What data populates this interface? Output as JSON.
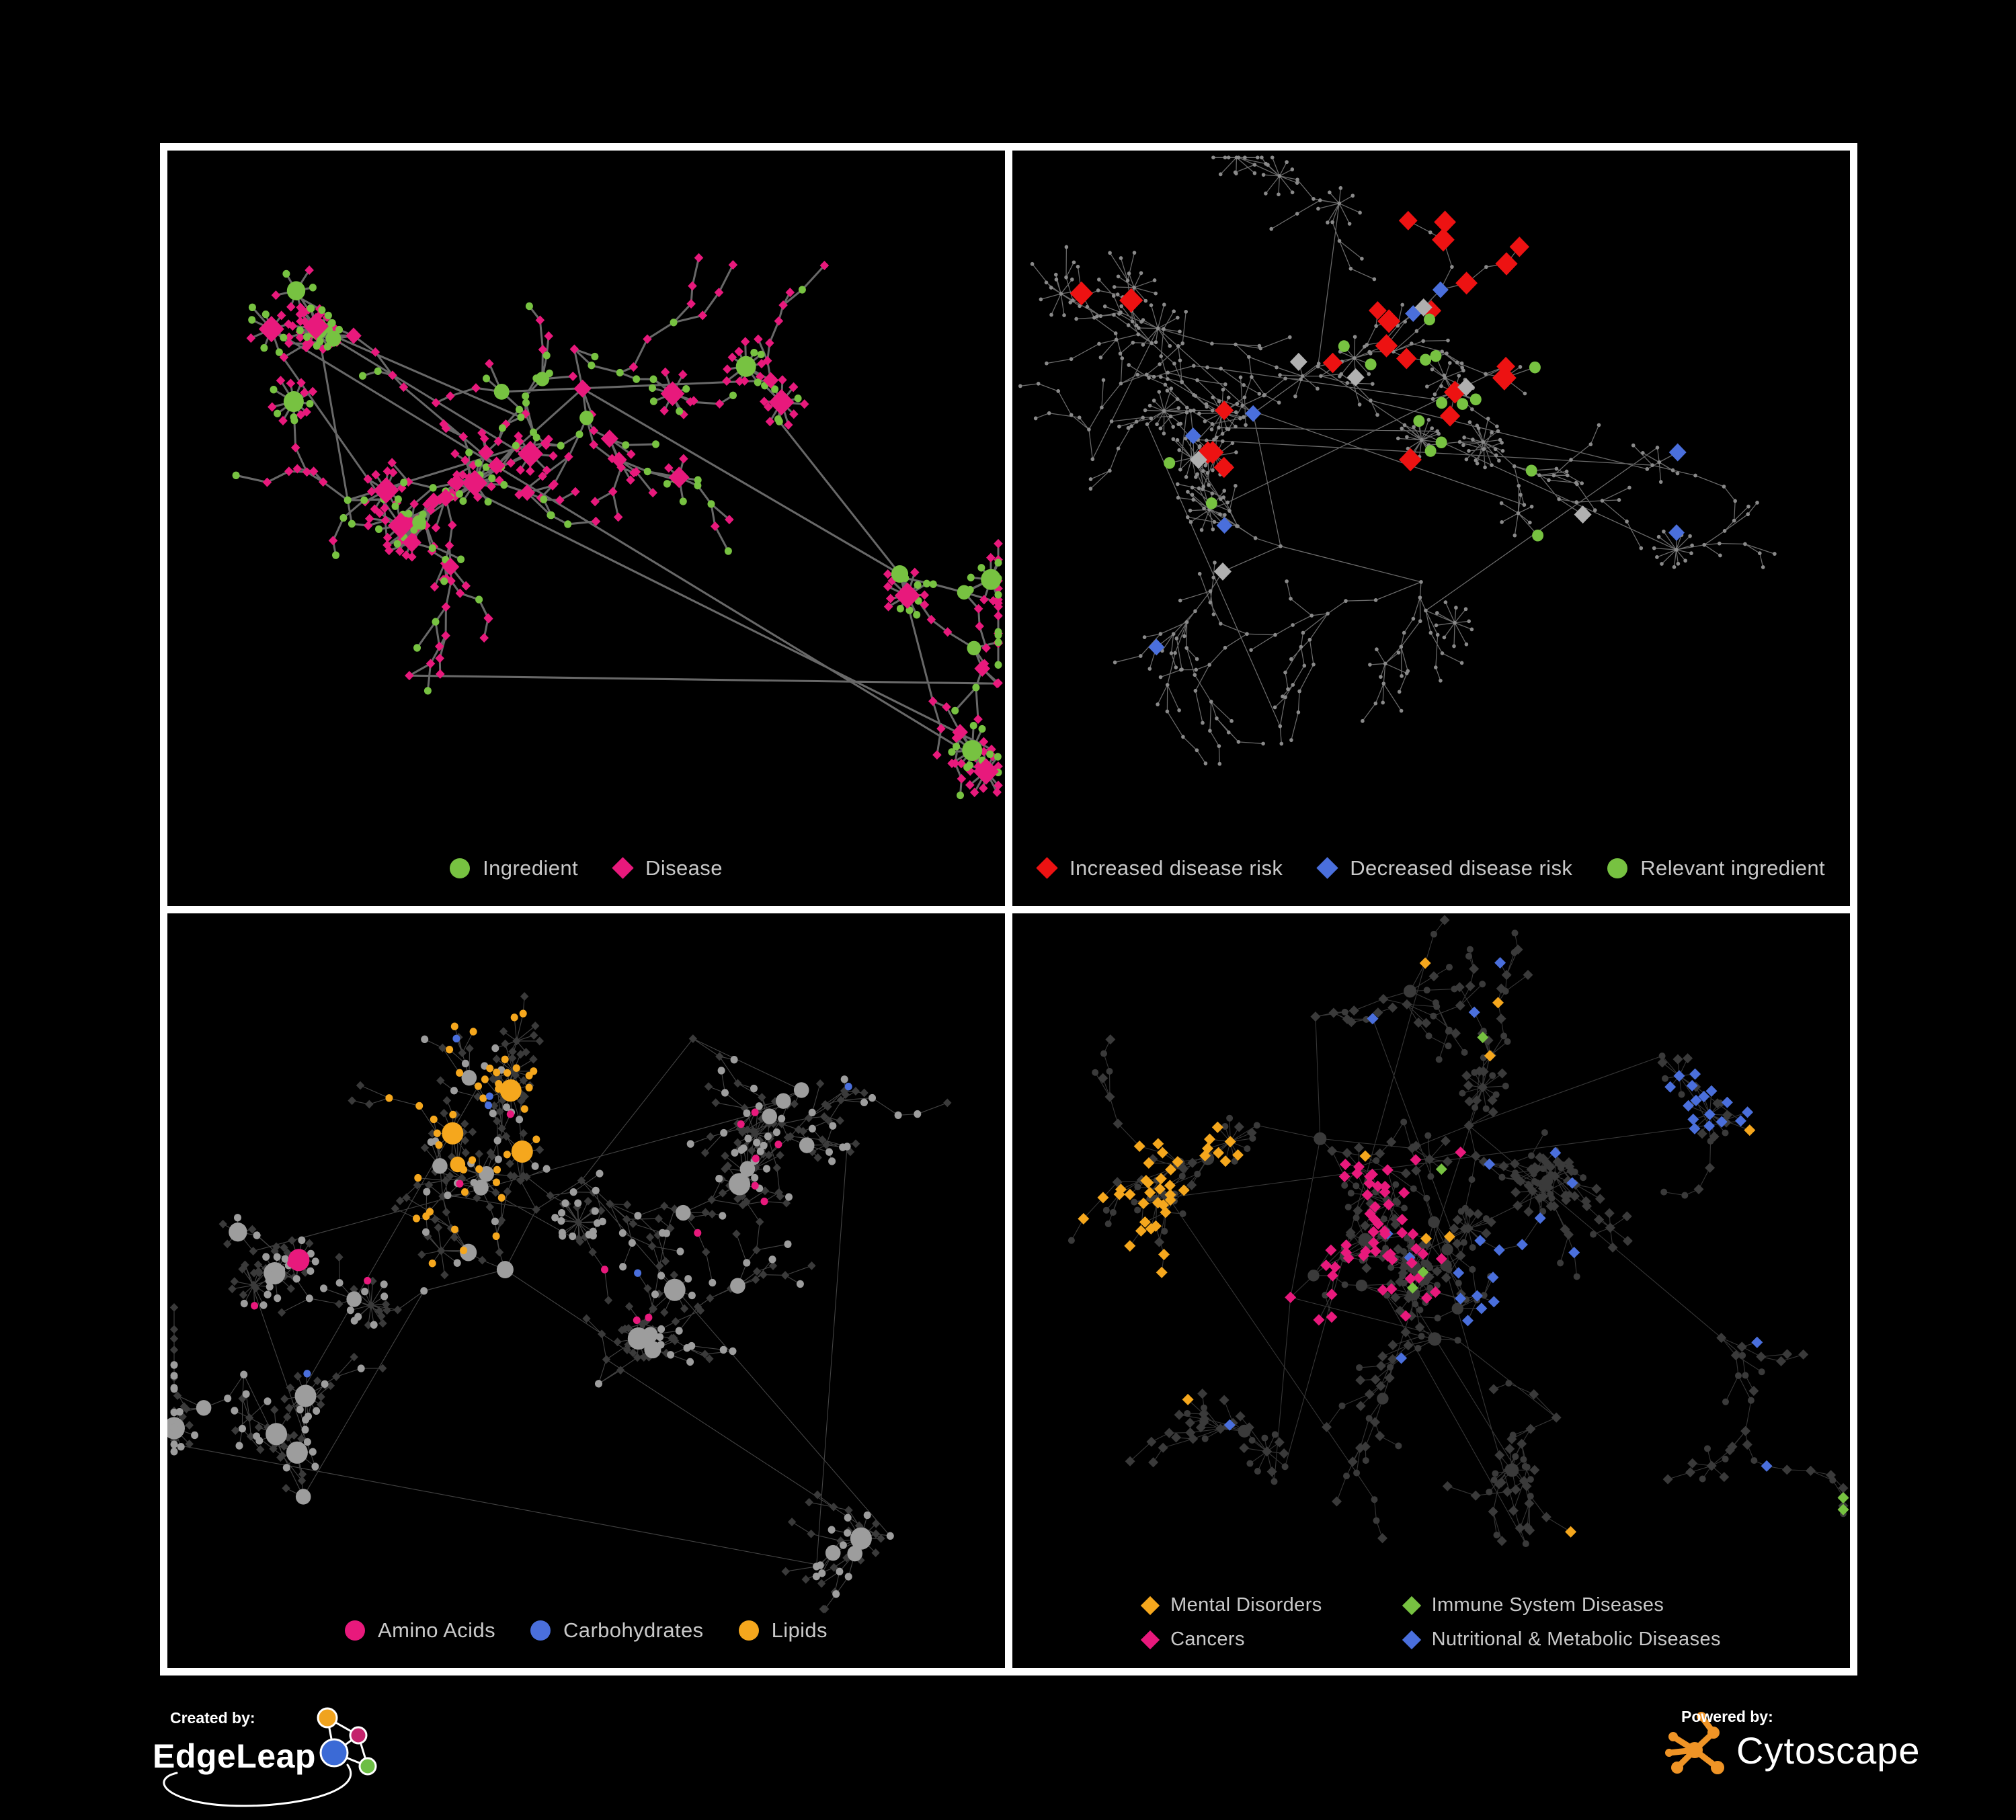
{
  "figure": {
    "background": "#000000",
    "panel_background": "#000000",
    "panel_border_color": "#ffffff",
    "legend_text_color": "#c9c9c9"
  },
  "palette": {
    "green": "#77c241",
    "magenta": "#e8197c",
    "red": "#ed1212",
    "blue": "#4a6fdc",
    "orange": "#f5a71d",
    "gray_highlight": "#b0b0b0",
    "gray_node": "#8a8a8a",
    "light_gray_node": "#9d9d9d",
    "dark_node": "#3a3a3a",
    "edge_dark_gray": "#6e6e6e",
    "edge_light_gray": "#9f9f9f"
  },
  "panels": [
    {
      "id": "ingredient-disease",
      "legend": [
        {
          "label": "Ingredient",
          "shape": "circle",
          "color": "#77c241"
        },
        {
          "label": "Disease",
          "shape": "diamond",
          "color": "#e8197c"
        }
      ]
    },
    {
      "id": "disease-risk",
      "legend": [
        {
          "label": "Increased disease risk",
          "shape": "diamond",
          "color": "#ed1212"
        },
        {
          "label": "Decreased disease risk",
          "shape": "diamond",
          "color": "#4a6fdc"
        },
        {
          "label": "Relevant ingredient",
          "shape": "circle",
          "color": "#77c241"
        }
      ]
    },
    {
      "id": "nutrient-classes",
      "legend": [
        {
          "label": "Amino Acids",
          "shape": "circle",
          "color": "#e8197c"
        },
        {
          "label": "Carbohydrates",
          "shape": "circle",
          "color": "#4a6fdc"
        },
        {
          "label": "Lipids",
          "shape": "circle",
          "color": "#f5a71d"
        }
      ]
    },
    {
      "id": "disease-classes",
      "legend_columns": 2,
      "legend": [
        {
          "label": "Mental Disorders",
          "shape": "diamond",
          "color": "#f5a71d"
        },
        {
          "label": "Immune System Diseases",
          "shape": "diamond",
          "color": "#77c241"
        },
        {
          "label": "Cancers",
          "shape": "diamond",
          "color": "#e8197c"
        },
        {
          "label": "Nutritional & Metabolic Diseases",
          "shape": "diamond",
          "color": "#4a6fdc"
        }
      ]
    }
  ],
  "footer": {
    "created_by_label": "Created by:",
    "created_by_name": "EdgeLeap",
    "powered_by_label": "Powered by:",
    "powered_by_name": "Cytoscape",
    "cytoscape_logo_color": "#ef9426",
    "edgeleap_logo_colors": [
      "#f0a31f",
      "#c4246c",
      "#3b6ad6",
      "#6dbe45"
    ]
  }
}
